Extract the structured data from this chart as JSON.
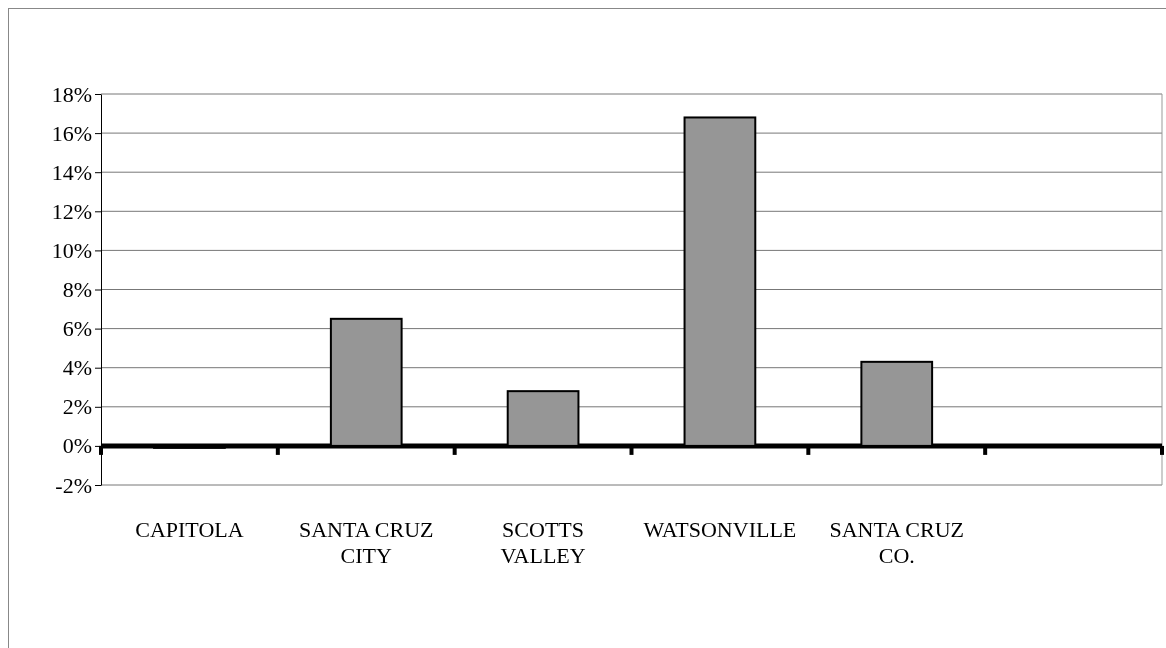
{
  "chart_data": {
    "type": "bar",
    "categories": [
      "CAPITOLA",
      "SANTA CRUZ CITY",
      "SCOTTS VALLEY",
      "WATSONVILLE",
      "SANTA CRUZ CO.",
      null
    ],
    "values": [
      -0.1,
      6.5,
      2.8,
      16.8,
      4.3,
      null
    ],
    "color": "#969696",
    "ylim": [
      -2,
      18
    ],
    "yticks": [
      {
        "value": -2,
        "label": "-2%"
      },
      {
        "value": 0,
        "label": "0%"
      },
      {
        "value": 2,
        "label": "2%"
      },
      {
        "value": 4,
        "label": "4%"
      },
      {
        "value": 6,
        "label": "6%"
      },
      {
        "value": 8,
        "label": "8%"
      },
      {
        "value": 10,
        "label": "10%"
      },
      {
        "value": 12,
        "label": "12%"
      },
      {
        "value": 14,
        "label": "14%"
      },
      {
        "value": 16,
        "label": "16%"
      },
      {
        "value": 18,
        "label": "18%"
      }
    ],
    "grid": "y"
  }
}
